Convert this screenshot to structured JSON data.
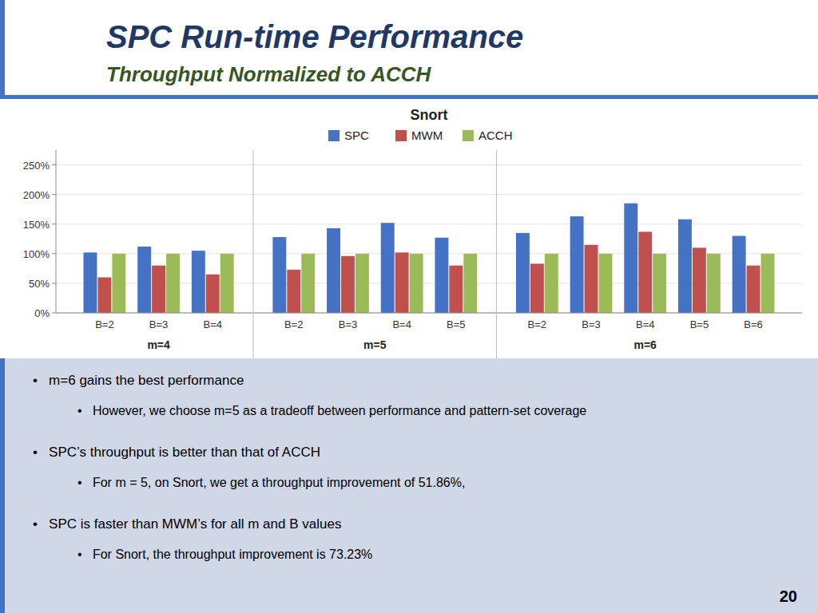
{
  "page": {
    "title": "SPC Run-time Performance",
    "subtitle": "Throughput Normalized to ACCH",
    "title_color": "#1F3864",
    "subtitle_color": "#375623",
    "accent_color": "#4472C4",
    "footer_color": "#d0d8e8",
    "notes": [
      {
        "text": "•   m=6 gains the best performance",
        "sub": [
          "•   However, we choose m=5 as a tradeoff between performance and pattern-set coverage"
        ]
      },
      {
        "text": "•   SPC’s throughput is better than that of ACCH",
        "sub": [
          "•   For m = 5, on Snort, we get a throughput improvement of 51.86%,"
        ]
      },
      {
        "text": "•   SPC is faster than MWM’s for all m and B values",
        "sub": [
          "•   For Snort, the throughput improvement is 73.23%"
        ]
      }
    ],
    "page_number": "20"
  },
  "chart_data": {
    "type": "bar",
    "title": "Snort",
    "categories": [
      "B=2",
      "B=3",
      "B=4",
      "B=2",
      "B=3",
      "B=4",
      "B=5",
      "B=2",
      "B=3",
      "B=4",
      "B=5",
      "B=6"
    ],
    "groups": [
      {
        "label": "m=4",
        "size": 3
      },
      {
        "label": "m=5",
        "size": 4
      },
      {
        "label": "m=6",
        "size": 5
      }
    ],
    "series": [
      {
        "name": "SPC",
        "color": "#4472C4",
        "values": [
          102,
          112,
          105,
          128,
          143,
          152,
          127,
          135,
          163,
          185,
          158,
          130
        ]
      },
      {
        "name": "MWM",
        "color": "#C0504D",
        "values": [
          60,
          80,
          65,
          73,
          96,
          102,
          80,
          83,
          115,
          137,
          110,
          80
        ]
      },
      {
        "name": "ACCH",
        "color": "#9BBB59",
        "values": [
          100,
          100,
          100,
          100,
          100,
          100,
          100,
          100,
          100,
          100,
          100,
          100
        ]
      }
    ],
    "ylim": [
      0,
      275
    ],
    "yticks": [
      {
        "value": 0,
        "label": "0%"
      },
      {
        "value": 50,
        "label": "50%"
      },
      {
        "value": 100,
        "label": "100%"
      },
      {
        "value": 150,
        "label": "150%"
      },
      {
        "value": 200,
        "label": "200%"
      },
      {
        "value": 250,
        "label": "250%"
      }
    ],
    "grid": true,
    "legend": "top"
  }
}
